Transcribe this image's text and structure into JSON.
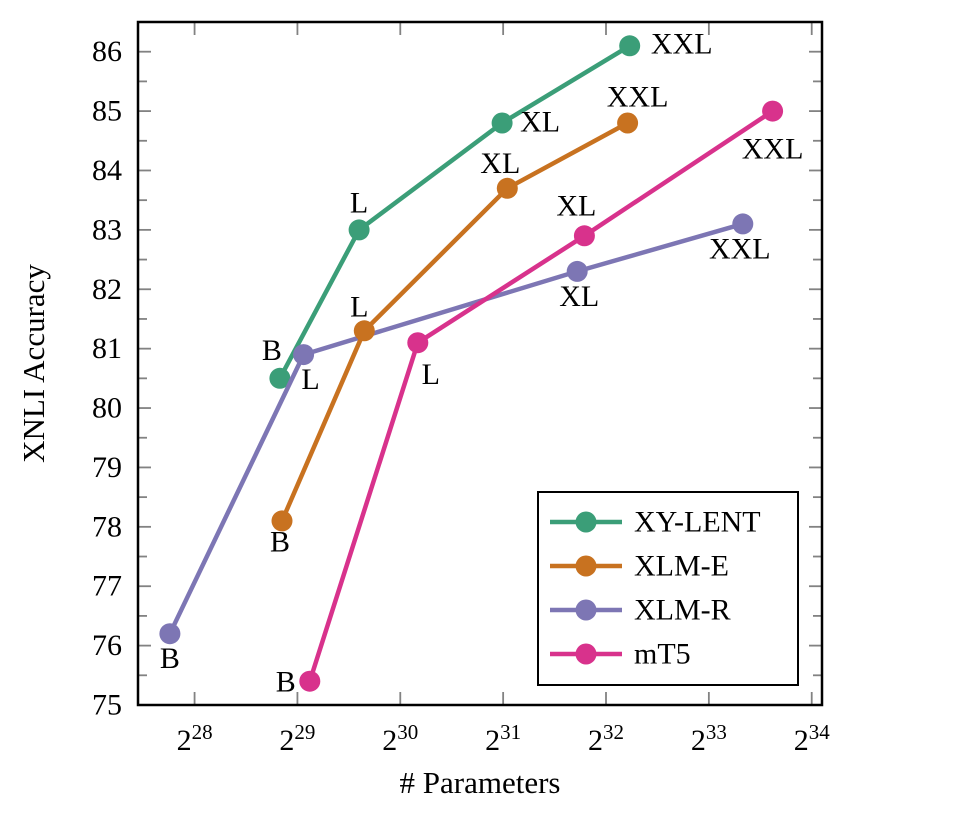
{
  "page": {
    "background": "#ffffff"
  },
  "chart_data": {
    "type": "line",
    "title": "",
    "xlabel": "# Parameters",
    "ylabel": "XNLI Accuracy",
    "x_scale": "log2",
    "x_tick_base": "2",
    "x_ticks_log2": [
      28,
      29,
      30,
      31,
      32,
      33,
      34
    ],
    "xlim_log2": [
      27.45,
      34.1
    ],
    "y_ticks": [
      75,
      76,
      77,
      78,
      79,
      80,
      81,
      82,
      83,
      84,
      85,
      86
    ],
    "y_minor_tick_step": 0.5,
    "ylim": [
      75,
      86.5
    ],
    "grid": false,
    "frame_color": "#000000",
    "tick_color": "#828282",
    "legend": {
      "position": "lower-right",
      "entries": [
        "XY-LENT",
        "XLM-E",
        "XLM-R",
        "mT5"
      ]
    },
    "series": [
      {
        "name": "XY-LENT",
        "color": "#3b9e78",
        "x_log2": [
          28.83,
          29.6,
          30.99,
          32.23
        ],
        "y": [
          80.5,
          83.0,
          84.8,
          86.1
        ],
        "point_labels": [
          "B",
          "L",
          "XL",
          "XXL"
        ],
        "label_offsets": [
          [
            -8,
            -28
          ],
          [
            0,
            -27
          ],
          [
            38,
            -1
          ],
          [
            52,
            -2
          ]
        ]
      },
      {
        "name": "XLM-R",
        "color": "#7d76b4",
        "x_log2": [
          27.76,
          29.06,
          31.72,
          33.33
        ],
        "y": [
          76.2,
          80.9,
          82.3,
          83.1
        ],
        "point_labels": [
          "B",
          "L",
          "XL",
          "XXL"
        ],
        "label_offsets": [
          [
            0,
            25
          ],
          [
            7,
            25
          ],
          [
            2,
            25
          ],
          [
            -3,
            25
          ]
        ]
      },
      {
        "name": "XLM-E",
        "color": "#c87220",
        "x_log2": [
          28.85,
          29.65,
          31.04,
          32.21
        ],
        "y": [
          78.1,
          81.3,
          83.7,
          84.8
        ],
        "point_labels": [
          "B",
          "L",
          "XL",
          "XXL"
        ],
        "label_offsets": [
          [
            -2,
            21
          ],
          [
            -5,
            -24
          ],
          [
            -7,
            -25
          ],
          [
            10,
            -26
          ]
        ]
      },
      {
        "name": "mT5",
        "color": "#d8328c",
        "x_log2": [
          29.12,
          30.17,
          31.79,
          33.62
        ],
        "y": [
          75.4,
          81.1,
          82.9,
          85.0
        ],
        "point_labels": [
          "B",
          "L",
          "XL",
          "XXL"
        ],
        "label_offsets": [
          [
            -24,
            1
          ],
          [
            13,
            32
          ],
          [
            -8,
            -30
          ],
          [
            0,
            38
          ]
        ]
      }
    ]
  }
}
